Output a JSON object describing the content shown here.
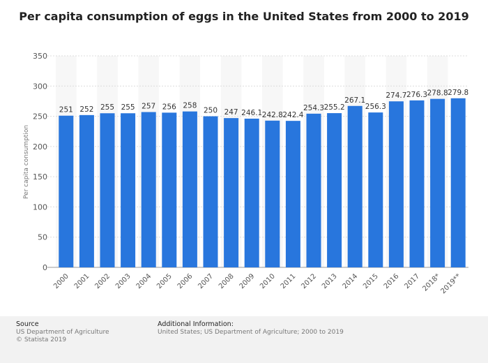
{
  "chart_data": {
    "type": "bar",
    "title": "Per capita consumption of eggs in the United States from 2000 to 2019",
    "ylabel": "Per capita consumption",
    "xlabel": "",
    "categories": [
      "2000",
      "2001",
      "2002",
      "2003",
      "2004",
      "2005",
      "2006",
      "2007",
      "2008",
      "2009",
      "2010",
      "2011",
      "2012",
      "2013",
      "2014",
      "2015",
      "2016",
      "2017",
      "2018*",
      "2019**"
    ],
    "values": [
      251,
      252,
      255,
      255,
      257,
      256,
      258,
      250,
      247,
      246.1,
      242.8,
      242.4,
      254.3,
      255.2,
      267.1,
      256.3,
      274.7,
      276.3,
      278.8,
      279.8
    ],
    "value_labels": [
      "251",
      "252",
      "255",
      "255",
      "257",
      "256",
      "258",
      "250",
      "247",
      "246.1",
      "242.8",
      "242.4",
      "254.3",
      "255.2",
      "267.1",
      "256.3",
      "274.7",
      "276.3",
      "278.8",
      "279.8"
    ],
    "ylim": [
      0,
      350
    ],
    "yticks": [
      "0",
      "50",
      "100",
      "150",
      "200",
      "250",
      "300",
      "350"
    ],
    "grid": true,
    "bar_color": "#2876dd"
  },
  "footer": {
    "source_title": "Source",
    "source_line1": "US Department of Agriculture",
    "source_line2": "© Statista 2019",
    "info_title": "Additional Information:",
    "info_line": "United States; US Department of Agriculture; 2000 to 2019"
  }
}
